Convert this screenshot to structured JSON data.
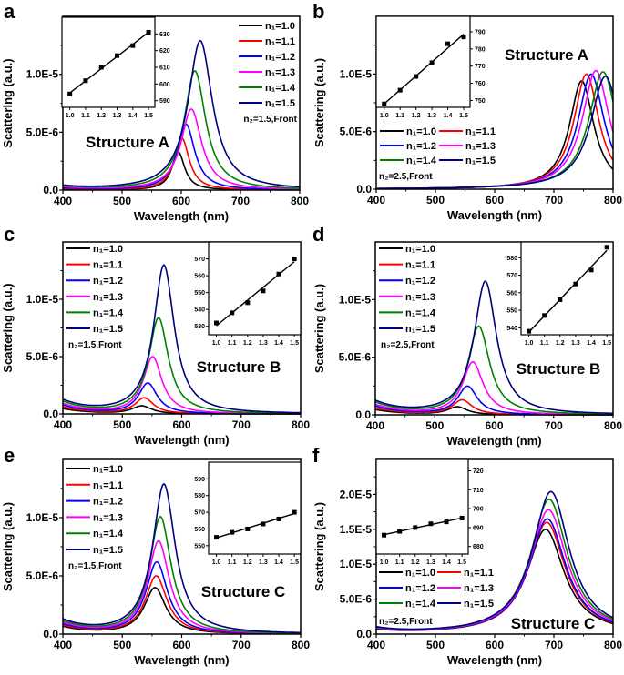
{
  "series_colors": [
    "#000000",
    "#ff0000",
    "#0000ff",
    "#ff00ff",
    "#008000",
    "#000080"
  ],
  "chart_data": [
    {
      "panel": "a",
      "type": "line",
      "xlabel": "Wavelength (nm)",
      "ylabel": "Scattering (a.u.)",
      "xlim": [
        400,
        800
      ],
      "ylim": [
        0,
        1.5e-05
      ],
      "xticks": [
        {
          "value": 400,
          "label": "400"
        },
        {
          "value": 500,
          "label": "500"
        },
        {
          "value": 600,
          "label": "600"
        },
        {
          "value": 700,
          "label": "700"
        },
        {
          "value": 800,
          "label": "800"
        }
      ],
      "yticks": [
        {
          "value": 0,
          "label": "0.0"
        },
        {
          "value": 5e-06,
          "label": "5.0E-6"
        },
        {
          "value": 1e-05,
          "label": "1.0E-5"
        }
      ],
      "annotation": "Structure A",
      "legend_note": "n₂=1.5,Front",
      "series": [
        {
          "name": "n₁=1.0",
          "peak_nm": 595,
          "peak_value": 3.3e-06,
          "fwhm_nm": 26,
          "tail_400": 1e-07
        },
        {
          "name": "n₁=1.1",
          "peak_nm": 601,
          "peak_value": 4.5e-06,
          "fwhm_nm": 30,
          "tail_400": 1.5e-07
        },
        {
          "name": "n₁=1.2",
          "peak_nm": 608,
          "peak_value": 5.7e-06,
          "fwhm_nm": 36,
          "tail_400": 2e-07
        },
        {
          "name": "n₁=1.3",
          "peak_nm": 617,
          "peak_value": 7e-06,
          "fwhm_nm": 42,
          "tail_400": 2.5e-07
        },
        {
          "name": "n₁=1.4",
          "peak_nm": 623,
          "peak_value": 1.03e-05,
          "fwhm_nm": 44,
          "tail_400": 3e-07
        },
        {
          "name": "n₁=1.5",
          "peak_nm": 632,
          "peak_value": 1.29e-05,
          "fwhm_nm": 50,
          "tail_400": 3e-07
        }
      ],
      "inset": {
        "type": "scatter",
        "fit": "linear",
        "x": [
          1.0,
          1.1,
          1.2,
          1.3,
          1.4,
          1.5
        ],
        "y": [
          594,
          602,
          610,
          617,
          623,
          631
        ],
        "xlim": [
          0.95,
          1.54
        ],
        "ylim": [
          586,
          640
        ],
        "yaxis_side": "right",
        "xticks": [
          "1.0",
          "1.1",
          "1.2",
          "1.3",
          "1.4",
          "1.5"
        ],
        "yticks": [
          590,
          600,
          610,
          620,
          630
        ]
      }
    },
    {
      "panel": "b",
      "type": "line",
      "xlabel": "Wavelength (nm)",
      "ylabel": "Scattering (a.u.)",
      "xlim": [
        400,
        800
      ],
      "ylim": [
        0,
        1.5e-05
      ],
      "xticks": [
        {
          "value": 400,
          "label": "400"
        },
        {
          "value": 500,
          "label": "500"
        },
        {
          "value": 600,
          "label": "600"
        },
        {
          "value": 700,
          "label": "700"
        },
        {
          "value": 800,
          "label": "800"
        }
      ],
      "yticks": [
        {
          "value": 0,
          "label": "0.0"
        },
        {
          "value": 5e-06,
          "label": "5.0E-6"
        },
        {
          "value": 1e-05,
          "label": "1.0E-5"
        }
      ],
      "annotation": "Structure A",
      "legend_note": "n₂=2.5,Front",
      "series": [
        {
          "name": "n₁=1.0",
          "peak_nm": 747,
          "peak_value": 9.4e-06,
          "fwhm_nm": 50,
          "tail_400": 0
        },
        {
          "name": "n₁=1.1",
          "peak_nm": 755,
          "peak_value": 1e-05,
          "fwhm_nm": 52,
          "tail_400": 0
        },
        {
          "name": "n₁=1.2",
          "peak_nm": 763,
          "peak_value": 1e-05,
          "fwhm_nm": 54,
          "tail_400": 0
        },
        {
          "name": "n₁=1.3",
          "peak_nm": 771,
          "peak_value": 1.03e-05,
          "fwhm_nm": 56,
          "tail_400": 0
        },
        {
          "name": "n₁=1.4",
          "peak_nm": 783,
          "peak_value": 1.02e-05,
          "fwhm_nm": 58,
          "tail_400": 0
        },
        {
          "name": "n₁=1.5",
          "peak_nm": 787,
          "peak_value": 9.8e-06,
          "fwhm_nm": 60,
          "tail_400": 0
        }
      ],
      "inset": {
        "type": "scatter",
        "fit": "linear",
        "x": [
          1.0,
          1.1,
          1.2,
          1.3,
          1.4,
          1.5
        ],
        "y": [
          748,
          756,
          764,
          772,
          783,
          787
        ],
        "xlim": [
          0.95,
          1.54
        ],
        "ylim": [
          746,
          799
        ],
        "yaxis_side": "right",
        "xticks": [
          "1.0",
          "1.1",
          "1.2",
          "1.3",
          "1.4",
          "1.5"
        ],
        "yticks": [
          750,
          760,
          770,
          780,
          790
        ]
      }
    },
    {
      "panel": "c",
      "type": "line",
      "xlabel": "Wavelength (nm)",
      "ylabel": "Scattering (a.u.)",
      "xlim": [
        400,
        800
      ],
      "ylim": [
        0,
        1.5e-05
      ],
      "xticks": [
        {
          "value": 400,
          "label": "400"
        },
        {
          "value": 500,
          "label": "500"
        },
        {
          "value": 600,
          "label": "600"
        },
        {
          "value": 700,
          "label": "700"
        },
        {
          "value": 800,
          "label": "800"
        }
      ],
      "yticks": [
        {
          "value": 0,
          "label": "0.0"
        },
        {
          "value": 5e-06,
          "label": "5.0E-6"
        },
        {
          "value": 1e-05,
          "label": "1.0E-5"
        }
      ],
      "annotation": "Structure B",
      "legend_note": "n₂=1.5,Front",
      "series": [
        {
          "name": "n₁=1.0",
          "peak_nm": 533,
          "peak_value": 7e-07,
          "fwhm_nm": 40,
          "tail_400": 4.5e-07
        },
        {
          "name": "n₁=1.1",
          "peak_nm": 537,
          "peak_value": 1.4e-06,
          "fwhm_nm": 38,
          "tail_400": 6e-07
        },
        {
          "name": "n₁=1.2",
          "peak_nm": 543,
          "peak_value": 2.7e-06,
          "fwhm_nm": 38,
          "tail_400": 7.5e-07
        },
        {
          "name": "n₁=1.3",
          "peak_nm": 551,
          "peak_value": 5e-06,
          "fwhm_nm": 38,
          "tail_400": 8.5e-07
        },
        {
          "name": "n₁=1.4",
          "peak_nm": 561,
          "peak_value": 8.4e-06,
          "fwhm_nm": 40,
          "tail_400": 1e-06
        },
        {
          "name": "n₁=1.5",
          "peak_nm": 570,
          "peak_value": 1.3e-05,
          "fwhm_nm": 42,
          "tail_400": 1.1e-06
        }
      ],
      "inset": {
        "type": "scatter",
        "fit": "linear",
        "x": [
          1.0,
          1.1,
          1.2,
          1.3,
          1.4,
          1.5
        ],
        "y": [
          532,
          538,
          544,
          551,
          561,
          570
        ],
        "xlim": [
          0.95,
          1.54
        ],
        "ylim": [
          525,
          580
        ],
        "yaxis_side": "left",
        "xticks": [
          "1.0",
          "1.1",
          "1.2",
          "1.3",
          "1.4",
          "1.5"
        ],
        "yticks": [
          530,
          540,
          550,
          560,
          570
        ]
      }
    },
    {
      "panel": "d",
      "type": "line",
      "xlabel": "Wavelength (nm)",
      "ylabel": "Scattering (a.u.)",
      "xlim": [
        400,
        800
      ],
      "ylim": [
        0,
        1.5e-05
      ],
      "xticks": [
        {
          "value": 400,
          "label": "400"
        },
        {
          "value": 500,
          "label": "500"
        },
        {
          "value": 600,
          "label": "600"
        },
        {
          "value": 700,
          "label": "700"
        },
        {
          "value": 800,
          "label": "800"
        }
      ],
      "yticks": [
        {
          "value": 0,
          "label": "0.0"
        },
        {
          "value": 5e-06,
          "label": "5.0E-6"
        },
        {
          "value": 1e-05,
          "label": "1.0E-5"
        }
      ],
      "annotation": "Structure B",
      "legend_note": "n₂=2.5,Front",
      "series": [
        {
          "name": "n₁=1.0",
          "peak_nm": 538,
          "peak_value": 7e-07,
          "fwhm_nm": 40,
          "tail_400": 4.5e-07
        },
        {
          "name": "n₁=1.1",
          "peak_nm": 546,
          "peak_value": 1.3e-06,
          "fwhm_nm": 40,
          "tail_400": 6e-07
        },
        {
          "name": "n₁=1.2",
          "peak_nm": 555,
          "peak_value": 2.5e-06,
          "fwhm_nm": 40,
          "tail_400": 7.5e-07
        },
        {
          "name": "n₁=1.3",
          "peak_nm": 564,
          "peak_value": 4.6e-06,
          "fwhm_nm": 42,
          "tail_400": 8.5e-07
        },
        {
          "name": "n₁=1.4",
          "peak_nm": 574,
          "peak_value": 7.7e-06,
          "fwhm_nm": 44,
          "tail_400": 1e-06
        },
        {
          "name": "n₁=1.5",
          "peak_nm": 585,
          "peak_value": 1.16e-05,
          "fwhm_nm": 46,
          "tail_400": 1.1e-06
        }
      ],
      "inset": {
        "type": "scatter",
        "fit": "linear",
        "x": [
          1.0,
          1.1,
          1.2,
          1.3,
          1.4,
          1.5
        ],
        "y": [
          538,
          547,
          556,
          565,
          573,
          586
        ],
        "xlim": [
          0.95,
          1.54
        ],
        "ylim": [
          536,
          589
        ],
        "yaxis_side": "left",
        "xticks": [
          "1.0",
          "1.1",
          "1.2",
          "1.3",
          "1.4",
          "1.5"
        ],
        "yticks": [
          540,
          550,
          560,
          570,
          580
        ]
      }
    },
    {
      "panel": "e",
      "type": "line",
      "xlabel": "Wavelength (nm)",
      "ylabel": "Scattering (a.u.)",
      "xlim": [
        400,
        800
      ],
      "ylim": [
        0,
        1.5e-05
      ],
      "xticks": [
        {
          "value": 400,
          "label": "400"
        },
        {
          "value": 500,
          "label": "500"
        },
        {
          "value": 600,
          "label": "600"
        },
        {
          "value": 700,
          "label": "700"
        },
        {
          "value": 800,
          "label": "800"
        }
      ],
      "yticks": [
        {
          "value": 0,
          "label": "0.0"
        },
        {
          "value": 5e-06,
          "label": "5.0E-6"
        },
        {
          "value": 1e-05,
          "label": "1.0E-5"
        }
      ],
      "annotation": "Structure C",
      "legend_note": "n₂=1.5,Front",
      "series": [
        {
          "name": "n₁=1.0",
          "peak_nm": 555,
          "peak_value": 4e-06,
          "fwhm_nm": 44,
          "tail_400": 6e-07
        },
        {
          "name": "n₁=1.1",
          "peak_nm": 557,
          "peak_value": 5e-06,
          "fwhm_nm": 44,
          "tail_400": 7e-07
        },
        {
          "name": "n₁=1.2",
          "peak_nm": 558,
          "peak_value": 6.2e-06,
          "fwhm_nm": 44,
          "tail_400": 8e-07
        },
        {
          "name": "n₁=1.3",
          "peak_nm": 561,
          "peak_value": 8e-06,
          "fwhm_nm": 44,
          "tail_400": 9e-07
        },
        {
          "name": "n₁=1.4",
          "peak_nm": 564,
          "peak_value": 1.01e-05,
          "fwhm_nm": 44,
          "tail_400": 1e-06
        },
        {
          "name": "n₁=1.5",
          "peak_nm": 570,
          "peak_value": 1.29e-05,
          "fwhm_nm": 46,
          "tail_400": 1.1e-06
        }
      ],
      "inset": {
        "type": "scatter",
        "fit": "linear",
        "x": [
          1.0,
          1.1,
          1.2,
          1.3,
          1.4,
          1.5
        ],
        "y": [
          555,
          558,
          560,
          563,
          566,
          570
        ],
        "xlim": [
          0.95,
          1.54
        ],
        "ylim": [
          545,
          600
        ],
        "yaxis_side": "left",
        "xticks": [
          "1.0",
          "1.1",
          "1.2",
          "1.3",
          "1.4",
          "1.5"
        ],
        "yticks": [
          550,
          560,
          570,
          580,
          590
        ]
      }
    },
    {
      "panel": "f",
      "type": "line",
      "xlabel": "Wavelength (nm)",
      "ylabel": "Scattering (a.u.)",
      "xlim": [
        400,
        800
      ],
      "ylim": [
        0,
        2.5e-05
      ],
      "xticks": [
        {
          "value": 400,
          "label": "400"
        },
        {
          "value": 500,
          "label": "500"
        },
        {
          "value": 600,
          "label": "600"
        },
        {
          "value": 700,
          "label": "700"
        },
        {
          "value": 800,
          "label": "800"
        }
      ],
      "yticks": [
        {
          "value": 0,
          "label": "0.0"
        },
        {
          "value": 5e-06,
          "label": "5.0E-6"
        },
        {
          "value": 1e-05,
          "label": "1.0E-5"
        },
        {
          "value": 1.5e-05,
          "label": "1.5E-5"
        },
        {
          "value": 2e-05,
          "label": "2.0E-5"
        }
      ],
      "annotation": "Structure C",
      "legend_note": "n₂=2.5,Front",
      "series": [
        {
          "name": "n₁=1.0",
          "peak_nm": 686,
          "peak_value": 1.5e-05,
          "fwhm_nm": 76,
          "tail_400": 5e-07
        },
        {
          "name": "n₁=1.1",
          "peak_nm": 688,
          "peak_value": 1.6e-05,
          "fwhm_nm": 76,
          "tail_400": 5.5e-07
        },
        {
          "name": "n₁=1.2",
          "peak_nm": 689,
          "peak_value": 1.65e-05,
          "fwhm_nm": 76,
          "tail_400": 6e-07
        },
        {
          "name": "n₁=1.3",
          "peak_nm": 691,
          "peak_value": 1.78e-05,
          "fwhm_nm": 76,
          "tail_400": 6.5e-07
        },
        {
          "name": "n₁=1.4",
          "peak_nm": 692,
          "peak_value": 1.93e-05,
          "fwhm_nm": 76,
          "tail_400": 7e-07
        },
        {
          "name": "n₁=1.5",
          "peak_nm": 695,
          "peak_value": 2.04e-05,
          "fwhm_nm": 76,
          "tail_400": 7.5e-07
        }
      ],
      "inset": {
        "type": "scatter",
        "fit": "linear",
        "x": [
          1.0,
          1.1,
          1.2,
          1.3,
          1.4,
          1.5
        ],
        "y": [
          686,
          688,
          690,
          692,
          693,
          695
        ],
        "xlim": [
          0.95,
          1.54
        ],
        "ylim": [
          676,
          726
        ],
        "yaxis_side": "right",
        "xticks": [
          "1.0",
          "1.1",
          "1.2",
          "1.3",
          "1.4",
          "1.5"
        ],
        "yticks": [
          680,
          690,
          700,
          710,
          720
        ]
      }
    }
  ]
}
